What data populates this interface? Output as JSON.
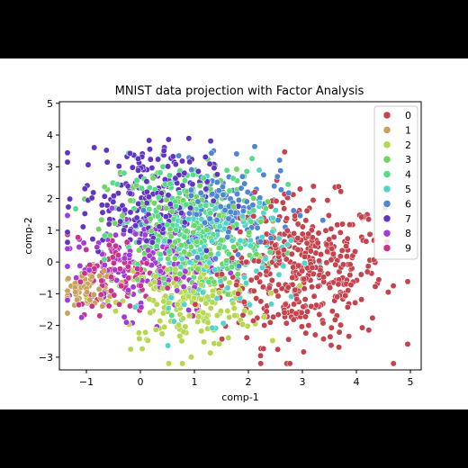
{
  "chart_data": {
    "type": "scatter",
    "title": "MNIST data projection with Factor Analysis",
    "xlabel": "comp-1",
    "ylabel": "comp-2",
    "xlim": [
      -1.5,
      5.2
    ],
    "ylim": [
      -3.4,
      5.05
    ],
    "xticks": [
      -1,
      0,
      1,
      2,
      3,
      4,
      5
    ],
    "yticks": [
      -3,
      -2,
      -1,
      0,
      1,
      2,
      3,
      4,
      5
    ],
    "grid": false,
    "legend": {
      "placement": "top-right"
    },
    "series": [
      {
        "name": "0",
        "color": "#c4434c",
        "center": [
          3.0,
          -0.3
        ],
        "spread": [
          0.75,
          1.15
        ],
        "count": 420
      },
      {
        "name": "1",
        "color": "#c8a15a",
        "center": [
          -0.95,
          -0.85
        ],
        "spread": [
          0.25,
          0.3
        ],
        "count": 70
      },
      {
        "name": "2",
        "color": "#b5d84e",
        "center": [
          0.9,
          -1.3
        ],
        "spread": [
          0.65,
          0.7
        ],
        "count": 200
      },
      {
        "name": "3",
        "color": "#6fd461",
        "center": [
          0.8,
          0.9
        ],
        "spread": [
          0.7,
          1.0
        ],
        "count": 200
      },
      {
        "name": "4",
        "color": "#52dd86",
        "center": [
          0.9,
          1.3
        ],
        "spread": [
          0.7,
          0.95
        ],
        "count": 200
      },
      {
        "name": "5",
        "color": "#51d4c9",
        "center": [
          1.4,
          0.3
        ],
        "spread": [
          0.7,
          1.0
        ],
        "count": 150
      },
      {
        "name": "6",
        "color": "#4f86d4",
        "center": [
          1.6,
          1.6
        ],
        "spread": [
          0.6,
          0.7
        ],
        "count": 150
      },
      {
        "name": "7",
        "color": "#6135c2",
        "center": [
          0.1,
          2.0
        ],
        "spread": [
          0.6,
          0.9
        ],
        "count": 220
      },
      {
        "name": "8",
        "color": "#a43bd6",
        "center": [
          0.1,
          0.0
        ],
        "spread": [
          0.7,
          0.8
        ],
        "count": 150
      },
      {
        "name": "9",
        "color": "#c9338e",
        "center": [
          -0.3,
          -0.4
        ],
        "spread": [
          0.45,
          0.6
        ],
        "count": 100
      }
    ]
  }
}
